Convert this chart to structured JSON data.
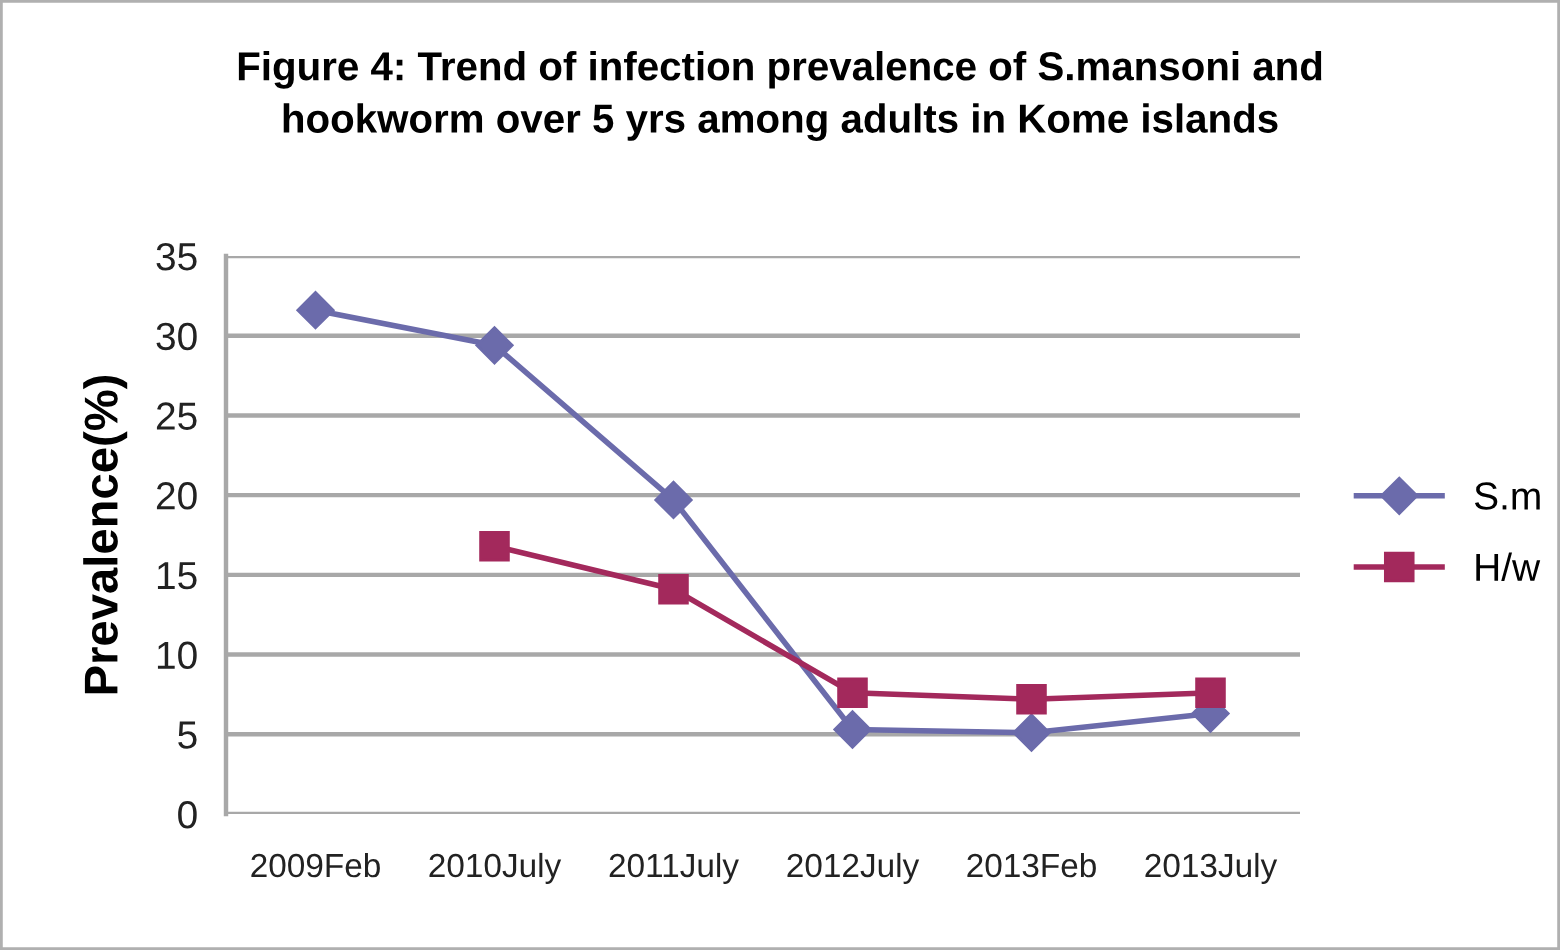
{
  "chart_data": {
    "type": "line",
    "title": "Figure 4: Trend of infection prevalence of S.mansoni and\nhookworm over 5 yrs among adults in Kome islands",
    "ylabel": "Prevalence(%)",
    "categories": [
      "2009Feb",
      "2010July",
      "2011July",
      "2012July",
      "2013Feb",
      "2013July"
    ],
    "series": [
      {
        "name": "S.m",
        "color": "#6b6bab",
        "marker": "diamond",
        "values": [
          31.6,
          29.4,
          19.7,
          5.3,
          5.1,
          6.3
        ]
      },
      {
        "name": "H/w",
        "color": "#a3295c",
        "marker": "square",
        "values": [
          null,
          16.8,
          14.1,
          7.6,
          7.2,
          7.6
        ]
      }
    ],
    "ylim": [
      0,
      35
    ],
    "yticks": [
      0,
      5,
      10,
      15,
      20,
      25,
      30,
      35
    ],
    "grid": "y",
    "legend": "right",
    "line_style": "solid"
  }
}
